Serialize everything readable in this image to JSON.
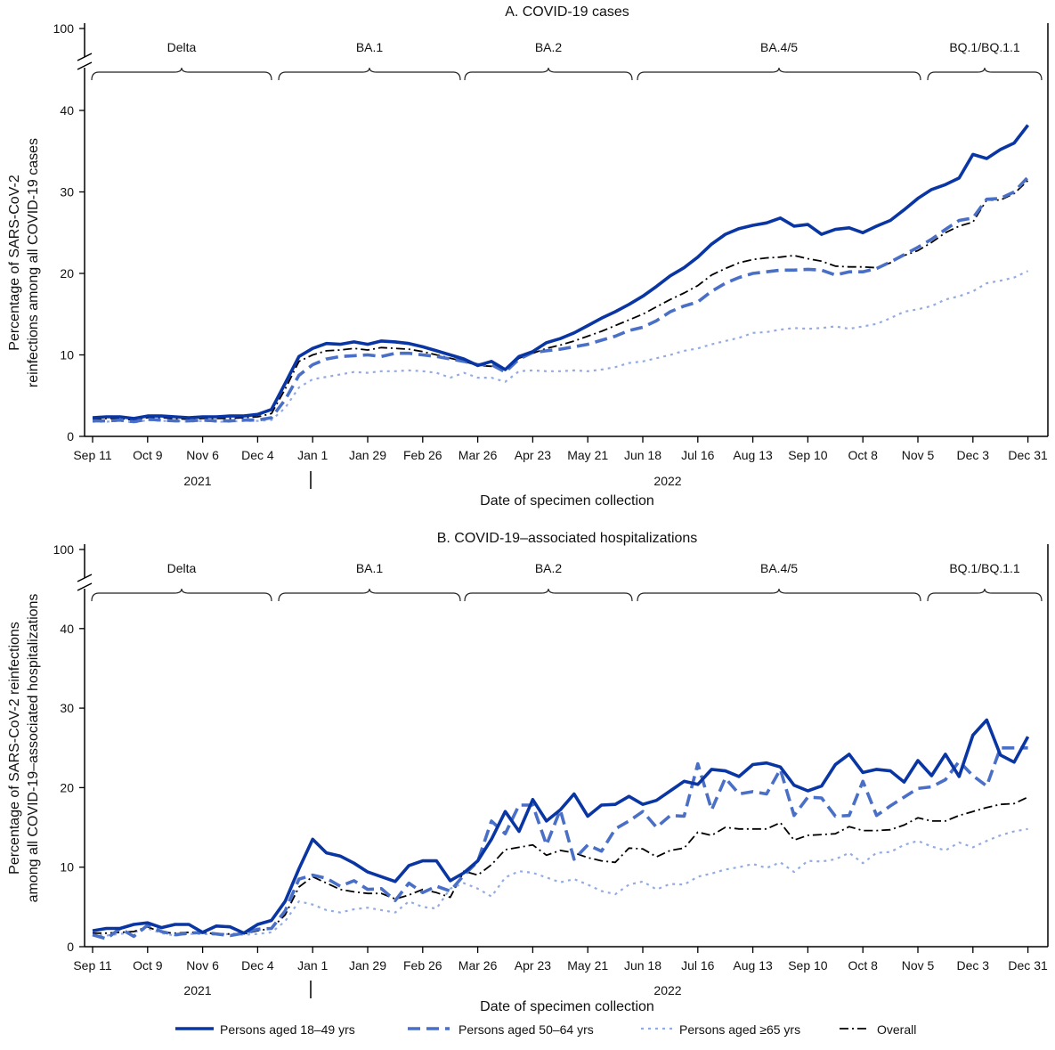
{
  "legend": [
    {
      "label": "Persons aged 18–49 yrs",
      "series": "18-49"
    },
    {
      "label": "Persons aged 50–64 yrs",
      "series": "50-64"
    },
    {
      "label": "Persons aged ≥65 yrs",
      "series": "65+"
    },
    {
      "label": "Overall",
      "series": "overall"
    }
  ],
  "colors": {
    "18-49": "#0a36a4",
    "50-64": "#4a6fc6",
    "65+": "#93abe3",
    "overall": "#000000"
  },
  "chart_data": [
    {
      "type": "line",
      "title": "A. COVID-19 cases",
      "xlabel": "Date of specimen collection",
      "ylabel": [
        "Percentage of SARS-CoV-2",
        "reinfections among all COVID-19 cases"
      ],
      "year_labels": [
        "2021",
        "2022"
      ],
      "x_tick_labels": [
        "Sep 11",
        "Oct 9",
        "Nov 6",
        "Dec 4",
        "Jan 1",
        "Jan 29",
        "Feb 26",
        "Mar 26",
        "Apr 23",
        "May 21",
        "Jun 18",
        "Jul 16",
        "Aug 13",
        "Sep 10",
        "Oct 8",
        "Nov 5",
        "Dec 3",
        "Dec 31"
      ],
      "y_ticks": [
        0,
        10,
        20,
        30,
        40,
        100
      ],
      "y_tick_labels": [
        "0",
        "10",
        "20",
        "30",
        "40",
        "100"
      ],
      "ylim": [
        0,
        100
      ],
      "y_axis_break": [
        45,
        100
      ],
      "grid": false,
      "variant_periods": [
        "Delta",
        "BA.1",
        "BA.2",
        "BA.4/5",
        "BQ.1/BQ.1.1"
      ],
      "x": [
        "2021-09-11",
        "2021-09-18",
        "2021-09-25",
        "2021-10-02",
        "2021-10-09",
        "2021-10-16",
        "2021-10-23",
        "2021-10-30",
        "2021-11-06",
        "2021-11-13",
        "2021-11-20",
        "2021-11-27",
        "2021-12-04",
        "2021-12-11",
        "2021-12-18",
        "2021-12-25",
        "2022-01-01",
        "2022-01-08",
        "2022-01-15",
        "2022-01-22",
        "2022-01-29",
        "2022-02-05",
        "2022-02-12",
        "2022-02-19",
        "2022-02-26",
        "2022-03-05",
        "2022-03-12",
        "2022-03-19",
        "2022-03-26",
        "2022-04-02",
        "2022-04-09",
        "2022-04-16",
        "2022-04-23",
        "2022-04-30",
        "2022-05-07",
        "2022-05-14",
        "2022-05-21",
        "2022-05-28",
        "2022-06-04",
        "2022-06-11",
        "2022-06-18",
        "2022-06-25",
        "2022-07-02",
        "2022-07-09",
        "2022-07-16",
        "2022-07-23",
        "2022-07-30",
        "2022-08-06",
        "2022-08-13",
        "2022-08-20",
        "2022-08-27",
        "2022-09-03",
        "2022-09-10",
        "2022-09-17",
        "2022-09-24",
        "2022-10-01",
        "2022-10-08",
        "2022-10-15",
        "2022-10-22",
        "2022-10-29",
        "2022-11-05",
        "2022-11-12",
        "2022-11-19",
        "2022-11-26",
        "2022-12-03",
        "2022-12-10",
        "2022-12-17",
        "2022-12-24",
        "2022-12-31"
      ],
      "series": [
        {
          "name": "Persons aged 18–49 yrs",
          "key": "18-49",
          "values": [
            2.3,
            2.4,
            2.4,
            2.2,
            2.5,
            2.5,
            2.4,
            2.3,
            2.4,
            2.4,
            2.5,
            2.5,
            2.7,
            3.3,
            6.5,
            9.8,
            10.8,
            11.4,
            11.3,
            11.6,
            11.3,
            11.7,
            11.6,
            11.4,
            11.0,
            10.5,
            10.0,
            9.5,
            8.7,
            9.2,
            8.2,
            9.8,
            10.4,
            11.5,
            12.0,
            12.7,
            13.6,
            14.5,
            15.3,
            16.2,
            17.2,
            18.4,
            19.7,
            20.7,
            22.0,
            23.6,
            24.8,
            25.5,
            25.9,
            26.2,
            26.8,
            25.8,
            26.0,
            24.8,
            25.4,
            25.6,
            25.0,
            25.8,
            26.5,
            27.8,
            29.2,
            30.3,
            30.9,
            31.7,
            34.6,
            34.1,
            35.2,
            36.0,
            38.2
          ]
        },
        {
          "name": "Persons aged 50–64 yrs",
          "key": "50-64",
          "values": [
            1.9,
            1.9,
            2.0,
            1.8,
            2.1,
            2.0,
            1.9,
            1.9,
            2.0,
            1.9,
            1.9,
            2.0,
            2.0,
            2.3,
            4.5,
            7.5,
            8.8,
            9.5,
            9.8,
            9.9,
            10.0,
            9.8,
            10.2,
            10.2,
            10.0,
            9.8,
            9.5,
            9.2,
            8.8,
            8.8,
            7.9,
            9.5,
            10.3,
            10.5,
            10.7,
            11.0,
            11.3,
            11.8,
            12.3,
            13.0,
            13.4,
            14.2,
            15.3,
            16.0,
            16.5,
            17.8,
            18.8,
            19.5,
            20.0,
            20.2,
            20.4,
            20.4,
            20.5,
            20.4,
            19.8,
            20.2,
            20.2,
            20.6,
            21.4,
            22.3,
            23.2,
            24.2,
            25.4,
            26.5,
            26.8,
            29.1,
            29.2,
            30.0,
            31.8
          ]
        },
        {
          "name": "Persons aged ≥65 yrs",
          "key": "65+",
          "values": [
            1.8,
            1.8,
            1.9,
            1.7,
            2.0,
            1.9,
            1.9,
            1.8,
            1.9,
            1.8,
            1.8,
            1.9,
            1.9,
            2.0,
            3.5,
            6.0,
            7.0,
            7.3,
            7.6,
            7.9,
            7.8,
            8.0,
            8.0,
            8.1,
            8.0,
            7.8,
            7.2,
            7.8,
            7.2,
            7.2,
            6.7,
            8.0,
            8.1,
            8.0,
            8.0,
            8.1,
            8.0,
            8.2,
            8.5,
            9.0,
            9.2,
            9.6,
            10.0,
            10.5,
            10.8,
            11.3,
            11.7,
            12.1,
            12.7,
            12.8,
            13.1,
            13.3,
            13.2,
            13.3,
            13.5,
            13.2,
            13.5,
            13.8,
            14.5,
            15.3,
            15.6,
            16.0,
            16.8,
            17.2,
            17.8,
            18.8,
            19.1,
            19.5,
            20.3
          ]
        },
        {
          "name": "Overall",
          "key": "overall",
          "values": [
            2.1,
            2.2,
            2.2,
            2.0,
            2.3,
            2.3,
            2.2,
            2.1,
            2.2,
            2.2,
            2.2,
            2.3,
            2.4,
            2.8,
            5.8,
            9.2,
            10.0,
            10.5,
            10.6,
            10.8,
            10.6,
            10.9,
            10.8,
            10.7,
            10.4,
            10.0,
            9.6,
            9.2,
            8.7,
            8.6,
            8.2,
            9.6,
            10.2,
            10.8,
            11.2,
            11.7,
            12.3,
            12.9,
            13.6,
            14.3,
            15.0,
            15.9,
            16.8,
            17.6,
            18.5,
            19.8,
            20.6,
            21.3,
            21.7,
            21.9,
            22.0,
            22.2,
            21.8,
            21.5,
            20.9,
            20.8,
            20.8,
            20.7,
            21.3,
            22.2,
            22.8,
            23.8,
            25.0,
            25.8,
            26.3,
            29.0,
            29.0,
            29.8,
            31.4
          ]
        }
      ]
    },
    {
      "type": "line",
      "title": "B. COVID-19–associated hospitalizations",
      "xlabel": "Date of specimen collection",
      "ylabel": [
        "Percentage of SARS-CoV-2 reinfections",
        "among all COVID-19–associated hospitalizations"
      ],
      "year_labels": [
        "2021",
        "2022"
      ],
      "x_tick_labels": [
        "Sep 11",
        "Oct 9",
        "Nov 6",
        "Dec 4",
        "Jan 1",
        "Jan 29",
        "Feb 26",
        "Mar 26",
        "Apr 23",
        "May 21",
        "Jun 18",
        "Jul 16",
        "Aug 13",
        "Sep 10",
        "Oct 8",
        "Nov 5",
        "Dec 3",
        "Dec 31"
      ],
      "y_ticks": [
        0,
        10,
        20,
        30,
        40,
        100
      ],
      "y_tick_labels": [
        "0",
        "10",
        "20",
        "30",
        "40",
        "100"
      ],
      "ylim": [
        0,
        100
      ],
      "y_axis_break": [
        45,
        100
      ],
      "grid": false,
      "variant_periods": [
        "Delta",
        "BA.1",
        "BA.2",
        "BA.4/5",
        "BQ.1/BQ.1.1"
      ],
      "x": [
        "2021-09-11",
        "2021-09-18",
        "2021-09-25",
        "2021-10-02",
        "2021-10-09",
        "2021-10-16",
        "2021-10-23",
        "2021-10-30",
        "2021-11-06",
        "2021-11-13",
        "2021-11-20",
        "2021-11-27",
        "2021-12-04",
        "2021-12-11",
        "2021-12-18",
        "2021-12-25",
        "2022-01-01",
        "2022-01-08",
        "2022-01-15",
        "2022-01-22",
        "2022-01-29",
        "2022-02-05",
        "2022-02-12",
        "2022-02-19",
        "2022-02-26",
        "2022-03-05",
        "2022-03-12",
        "2022-03-19",
        "2022-03-26",
        "2022-04-02",
        "2022-04-09",
        "2022-04-16",
        "2022-04-23",
        "2022-04-30",
        "2022-05-07",
        "2022-05-14",
        "2022-05-21",
        "2022-05-28",
        "2022-06-04",
        "2022-06-11",
        "2022-06-18",
        "2022-06-25",
        "2022-07-02",
        "2022-07-09",
        "2022-07-16",
        "2022-07-23",
        "2022-07-30",
        "2022-08-06",
        "2022-08-13",
        "2022-08-20",
        "2022-08-27",
        "2022-09-03",
        "2022-09-10",
        "2022-09-17",
        "2022-09-24",
        "2022-10-01",
        "2022-10-08",
        "2022-10-15",
        "2022-10-22",
        "2022-10-29",
        "2022-11-05",
        "2022-11-12",
        "2022-11-19",
        "2022-11-26",
        "2022-12-03",
        "2022-12-10",
        "2022-12-17",
        "2022-12-24",
        "2022-12-31"
      ],
      "series": [
        {
          "name": "Persons aged 18–49 yrs",
          "key": "18-49",
          "values": [
            2.0,
            2.3,
            2.3,
            2.8,
            3.0,
            2.4,
            2.8,
            2.8,
            1.8,
            2.6,
            2.5,
            1.7,
            2.8,
            3.3,
            5.7,
            9.8,
            13.5,
            11.8,
            11.4,
            10.5,
            9.4,
            8.8,
            8.2,
            10.2,
            10.8,
            10.8,
            8.3,
            9.3,
            10.8,
            13.5,
            17.0,
            14.5,
            18.5,
            15.8,
            17.2,
            19.2,
            16.4,
            17.8,
            17.9,
            18.9,
            17.9,
            18.4,
            19.6,
            20.8,
            20.4,
            22.3,
            22.1,
            21.4,
            22.9,
            23.1,
            22.6,
            20.3,
            19.6,
            20.2,
            22.9,
            24.2,
            21.9,
            22.3,
            22.1,
            20.7,
            23.4,
            21.5,
            24.2,
            21.4,
            26.6,
            28.5,
            24.1,
            23.2,
            26.4
          ]
        },
        {
          "name": "Persons aged 50–64 yrs",
          "key": "50-64",
          "values": [
            1.5,
            1.0,
            2.3,
            1.3,
            2.7,
            1.9,
            1.5,
            1.7,
            1.8,
            1.6,
            1.4,
            1.7,
            2.2,
            2.3,
            4.5,
            8.5,
            9.0,
            8.6,
            7.6,
            8.3,
            7.2,
            7.3,
            5.8,
            8.0,
            6.8,
            7.6,
            7.0,
            9.0,
            10.7,
            15.8,
            14.2,
            17.8,
            17.8,
            12.8,
            17.2,
            11.0,
            12.8,
            12.0,
            14.8,
            15.8,
            17.0,
            15.0,
            16.5,
            16.4,
            23.0,
            17.2,
            21.2,
            19.2,
            19.5,
            19.2,
            22.3,
            16.5,
            18.8,
            18.7,
            16.4,
            16.5,
            20.8,
            16.5,
            17.7,
            18.8,
            19.9,
            20.1,
            21.0,
            23.3,
            21.5,
            20.2,
            25.0,
            25.0,
            25.0
          ]
        },
        {
          "name": "Persons aged ≥65 yrs",
          "key": "65+",
          "values": [
            1.5,
            1.4,
            1.6,
            1.8,
            2.3,
            1.7,
            1.4,
            1.6,
            1.6,
            1.5,
            1.6,
            1.5,
            1.6,
            1.8,
            3.2,
            5.7,
            5.3,
            4.6,
            4.3,
            4.7,
            4.9,
            4.6,
            4.3,
            5.7,
            5.0,
            4.8,
            7.3,
            8.0,
            7.3,
            6.3,
            8.7,
            9.5,
            9.3,
            8.7,
            8.1,
            8.5,
            7.8,
            7.0,
            6.6,
            7.8,
            8.2,
            7.2,
            7.9,
            7.8,
            8.8,
            9.2,
            9.7,
            10.0,
            10.4,
            9.9,
            10.6,
            9.4,
            10.8,
            10.7,
            11.0,
            11.8,
            10.5,
            11.8,
            11.9,
            12.8,
            13.3,
            12.6,
            12.1,
            13.1,
            12.5,
            13.3,
            14.0,
            14.5,
            14.8
          ]
        },
        {
          "name": "Overall",
          "key": "overall",
          "values": [
            1.7,
            1.7,
            1.8,
            1.9,
            2.5,
            1.8,
            1.7,
            1.8,
            1.8,
            1.6,
            1.6,
            1.6,
            2.0,
            2.3,
            4.0,
            7.5,
            8.8,
            8.0,
            7.2,
            6.9,
            6.7,
            6.7,
            6.0,
            6.5,
            7.2,
            6.8,
            6.2,
            9.5,
            9.0,
            10.3,
            12.2,
            12.5,
            12.8,
            11.5,
            12.1,
            11.8,
            11.2,
            10.8,
            10.6,
            12.4,
            12.3,
            11.3,
            12.1,
            12.4,
            14.4,
            14.0,
            15.0,
            14.8,
            14.8,
            14.8,
            15.6,
            13.4,
            14.0,
            14.1,
            14.2,
            15.1,
            14.6,
            14.6,
            14.7,
            15.3,
            16.2,
            15.8,
            15.8,
            16.5,
            17.0,
            17.5,
            17.9,
            18.0,
            18.8
          ]
        }
      ]
    }
  ]
}
